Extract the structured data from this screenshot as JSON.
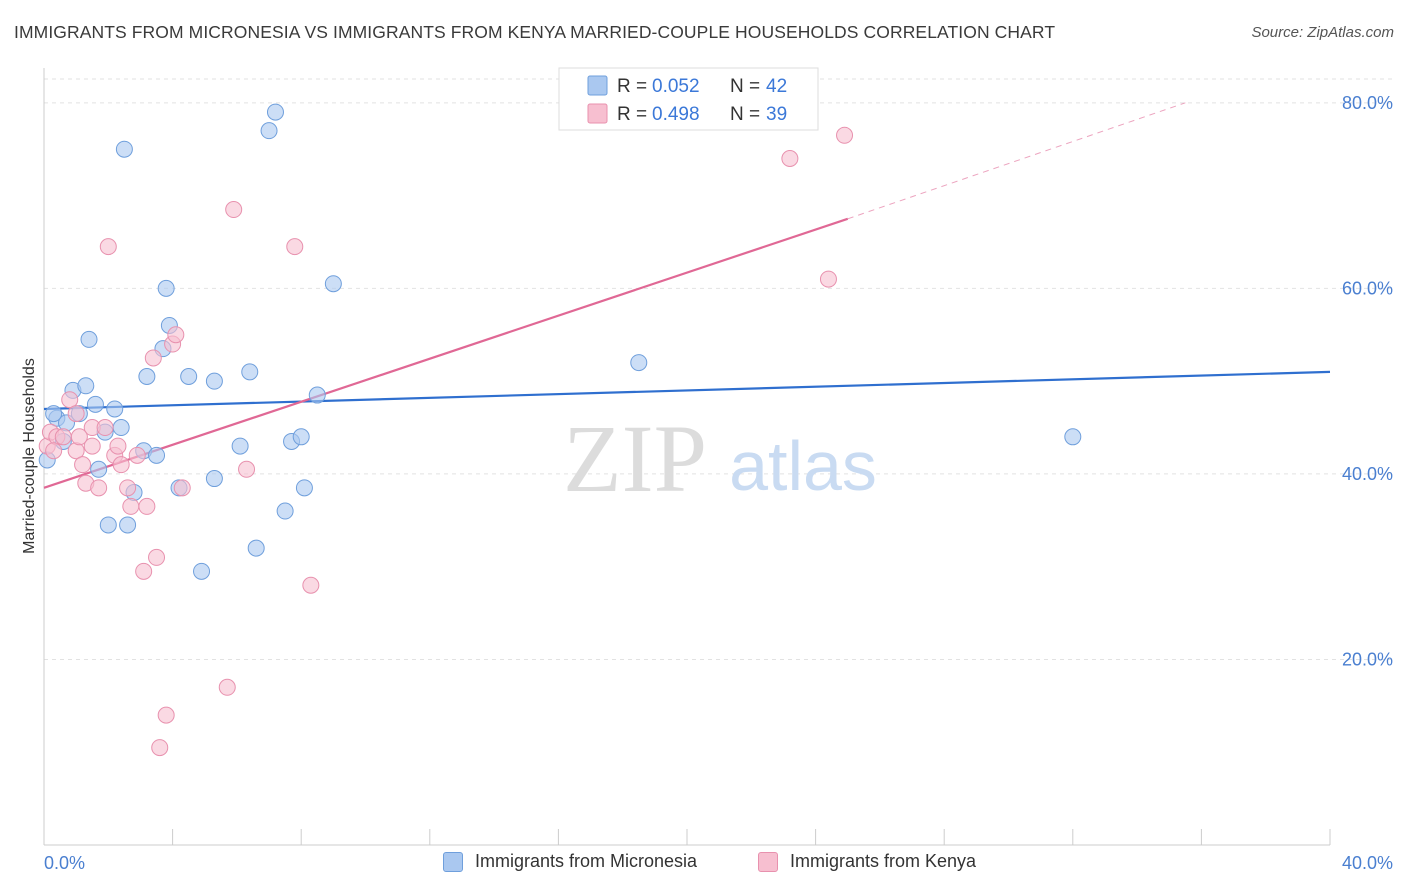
{
  "title": "IMMIGRANTS FROM MICRONESIA VS IMMIGRANTS FROM KENYA MARRIED-COUPLE HOUSEHOLDS CORRELATION CHART",
  "source": "Source: ZipAtlas.com",
  "watermark": {
    "zip": "ZIP",
    "atlas": "atlas"
  },
  "colors": {
    "micronesia_fill": "#aac8f0",
    "micronesia_stroke": "#6f9fdc",
    "micronesia_line": "#2f6fcf",
    "kenya_fill": "#f7bfd0",
    "kenya_stroke": "#e891ae",
    "kenya_line": "#e06895",
    "axis_text": "#4a7fd0",
    "grid": "#e2e2e2"
  },
  "legend": {
    "rows": [
      {
        "r_label": "R = ",
        "r_value": "0.052",
        "n_label": "N = ",
        "n_value": "42"
      },
      {
        "r_label": "R = ",
        "r_value": "0.498",
        "n_label": "N = ",
        "n_value": "39"
      }
    ]
  },
  "bottom_legend": [
    "Immigrants from Micronesia",
    "Immigrants from Kenya"
  ],
  "chart_data": {
    "type": "scatter",
    "title": "IMMIGRANTS FROM MICRONESIA VS IMMIGRANTS FROM KENYA MARRIED-COUPLE HOUSEHOLDS CORRELATION CHART",
    "ylabel": "Married-couple Households",
    "xlabel": "",
    "xlim": [
      0,
      40
    ],
    "ylim": [
      0,
      83
    ],
    "x_tick_labels": [
      "0.0%",
      "40.0%"
    ],
    "y_ticks": [
      20,
      40,
      60,
      80
    ],
    "y_tick_labels": [
      "20.0%",
      "40.0%",
      "60.0%",
      "80.0%"
    ],
    "grid": true,
    "legend_position": "top-center",
    "series": [
      {
        "name": "Immigrants from Micronesia",
        "r": 0.052,
        "n": 42,
        "trend": {
          "x": [
            0,
            40
          ],
          "y": [
            47.0,
            51.0
          ]
        },
        "points": [
          [
            0.1,
            41.5
          ],
          [
            0.4,
            46.0
          ],
          [
            0.6,
            43.5
          ],
          [
            0.7,
            45.5
          ],
          [
            0.9,
            49.0
          ],
          [
            1.1,
            46.5
          ],
          [
            1.3,
            49.5
          ],
          [
            1.4,
            54.5
          ],
          [
            1.6,
            47.5
          ],
          [
            1.7,
            40.5
          ],
          [
            1.9,
            44.5
          ],
          [
            2.0,
            34.5
          ],
          [
            2.2,
            47.0
          ],
          [
            2.4,
            45.0
          ],
          [
            2.5,
            75.0
          ],
          [
            2.6,
            34.5
          ],
          [
            2.8,
            38.0
          ],
          [
            3.1,
            42.5
          ],
          [
            3.2,
            50.5
          ],
          [
            3.5,
            42.0
          ],
          [
            3.7,
            53.5
          ],
          [
            3.8,
            60.0
          ],
          [
            3.9,
            56.0
          ],
          [
            4.2,
            38.5
          ],
          [
            4.5,
            50.5
          ],
          [
            4.9,
            29.5
          ],
          [
            5.3,
            50.0
          ],
          [
            5.3,
            39.5
          ],
          [
            6.1,
            43.0
          ],
          [
            6.4,
            51.0
          ],
          [
            6.6,
            32.0
          ],
          [
            7.0,
            77.0
          ],
          [
            7.2,
            79.0
          ],
          [
            7.5,
            36.0
          ],
          [
            7.7,
            43.5
          ],
          [
            8.0,
            44.0
          ],
          [
            8.1,
            38.5
          ],
          [
            8.5,
            48.5
          ],
          [
            9.0,
            60.5
          ],
          [
            18.5,
            52.0
          ],
          [
            32.0,
            44.0
          ],
          [
            0.3,
            46.5
          ]
        ]
      },
      {
        "name": "Immigrants from Kenya",
        "r": 0.498,
        "n": 39,
        "trend": {
          "x": [
            0,
            25
          ],
          "y": [
            38.5,
            67.5
          ]
        },
        "trend_dashed": {
          "x": [
            25,
            35.5
          ],
          "y": [
            67.5,
            80.0
          ]
        },
        "points": [
          [
            0.1,
            43.0
          ],
          [
            0.2,
            44.5
          ],
          [
            0.4,
            44.0
          ],
          [
            0.6,
            44.0
          ],
          [
            0.8,
            48.0
          ],
          [
            1.0,
            42.5
          ],
          [
            1.0,
            46.5
          ],
          [
            1.2,
            41.0
          ],
          [
            1.3,
            39.0
          ],
          [
            1.5,
            43.0
          ],
          [
            1.5,
            45.0
          ],
          [
            1.7,
            38.5
          ],
          [
            1.9,
            45.0
          ],
          [
            2.0,
            64.5
          ],
          [
            2.2,
            42.0
          ],
          [
            2.3,
            43.0
          ],
          [
            2.4,
            41.0
          ],
          [
            2.6,
            38.5
          ],
          [
            2.7,
            36.5
          ],
          [
            2.9,
            42.0
          ],
          [
            3.1,
            29.5
          ],
          [
            3.2,
            36.5
          ],
          [
            3.4,
            52.5
          ],
          [
            3.5,
            31.0
          ],
          [
            3.6,
            10.5
          ],
          [
            3.8,
            14.0
          ],
          [
            4.0,
            54.0
          ],
          [
            4.1,
            55.0
          ],
          [
            4.3,
            38.5
          ],
          [
            5.7,
            17.0
          ],
          [
            5.9,
            68.5
          ],
          [
            6.3,
            40.5
          ],
          [
            7.8,
            64.5
          ],
          [
            8.3,
            28.0
          ],
          [
            23.2,
            74.0
          ],
          [
            24.4,
            61.0
          ],
          [
            24.9,
            76.5
          ],
          [
            1.1,
            44.0
          ],
          [
            0.3,
            42.5
          ]
        ]
      }
    ]
  }
}
